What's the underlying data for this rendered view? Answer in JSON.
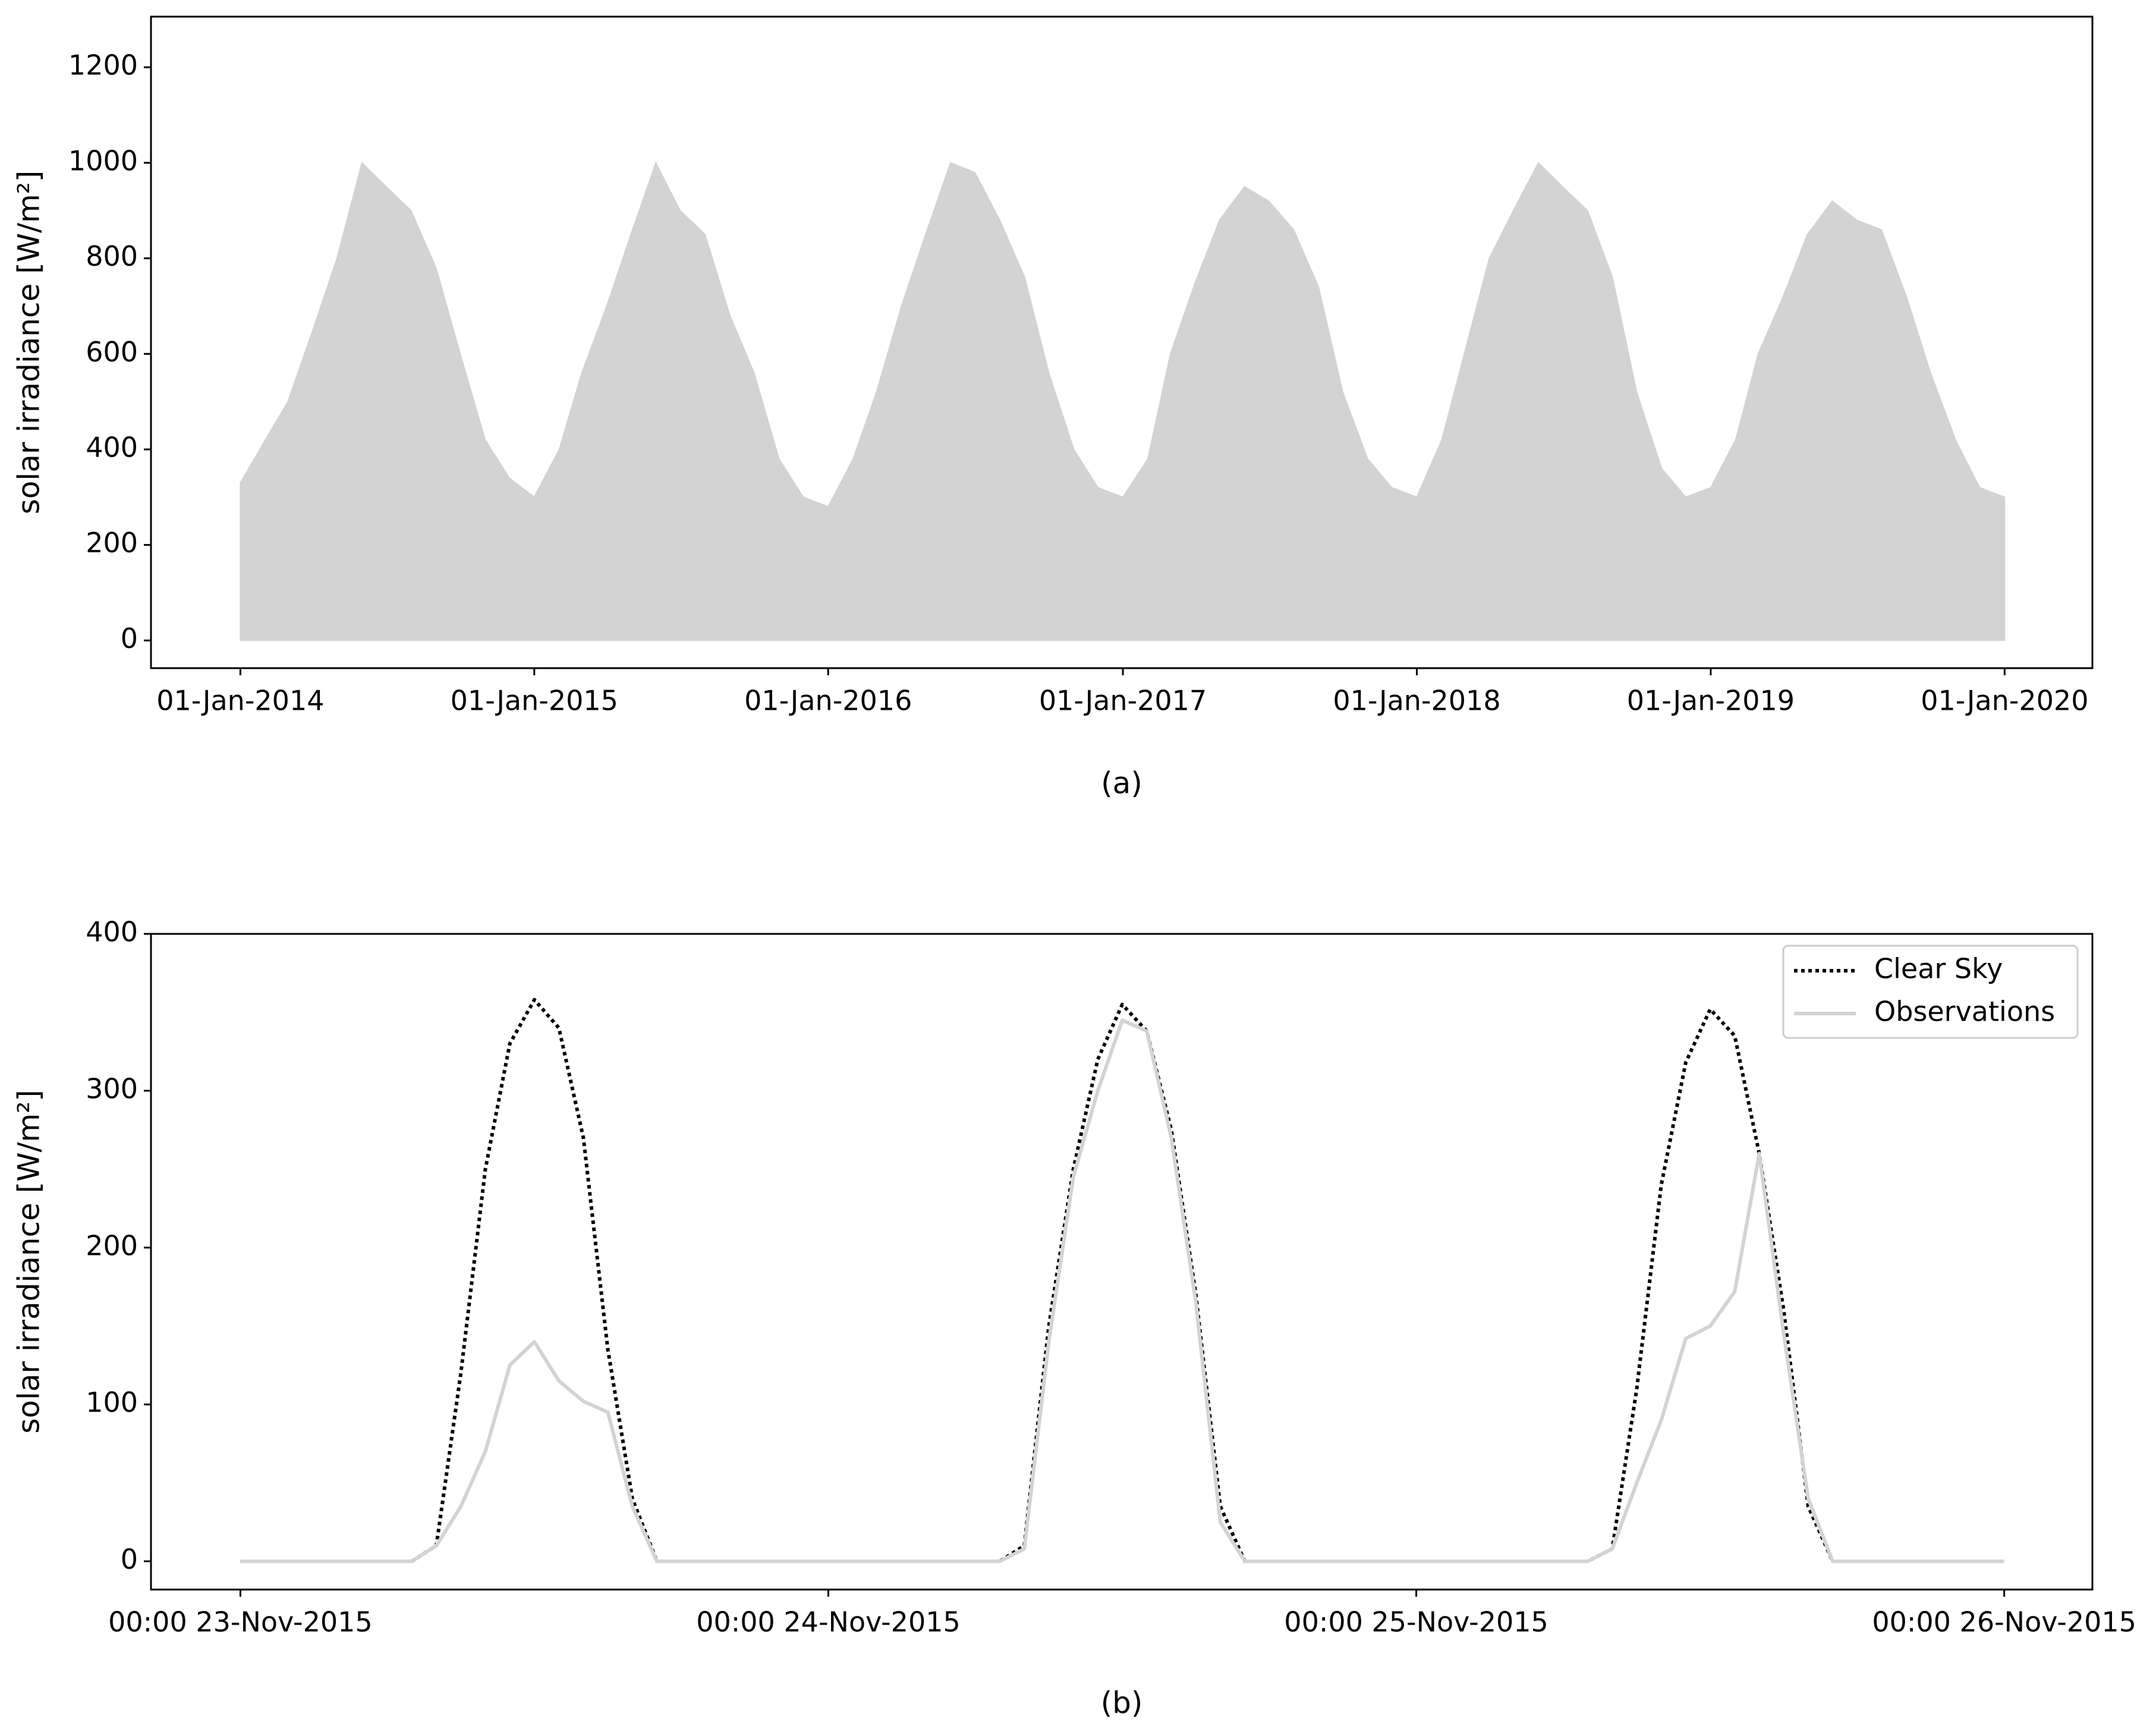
{
  "chart_data": [
    {
      "type": "area",
      "caption": "(a)",
      "ylabel": "solar irradiance [W/m²]",
      "x": [
        "2014-01-01",
        "2014-02-01",
        "2014-03-01",
        "2014-04-01",
        "2014-05-01",
        "2014-06-01",
        "2014-07-01",
        "2014-08-01",
        "2014-09-01",
        "2014-10-01",
        "2014-11-01",
        "2014-12-01",
        "2015-01-01",
        "2015-02-01",
        "2015-03-01",
        "2015-04-01",
        "2015-05-01",
        "2015-06-01",
        "2015-07-01",
        "2015-08-01",
        "2015-09-01",
        "2015-10-01",
        "2015-11-01",
        "2015-12-01",
        "2016-01-01",
        "2016-02-01",
        "2016-03-01",
        "2016-04-01",
        "2016-05-01",
        "2016-06-01",
        "2016-07-01",
        "2016-08-01",
        "2016-09-01",
        "2016-10-01",
        "2016-11-01",
        "2016-12-01",
        "2017-01-01",
        "2017-02-01",
        "2017-03-01",
        "2017-04-01",
        "2017-05-01",
        "2017-06-01",
        "2017-07-01",
        "2017-08-01",
        "2017-09-01",
        "2017-10-01",
        "2017-11-01",
        "2017-12-01",
        "2018-01-01",
        "2018-02-01",
        "2018-03-01",
        "2018-04-01",
        "2018-05-01",
        "2018-06-01",
        "2018-07-01",
        "2018-08-01",
        "2018-09-01",
        "2018-10-01",
        "2018-11-01",
        "2018-12-01",
        "2019-01-01",
        "2019-02-01",
        "2019-03-01",
        "2019-04-01",
        "2019-05-01",
        "2019-06-01",
        "2019-07-01",
        "2019-08-01",
        "2019-09-01",
        "2019-10-01",
        "2019-11-01",
        "2019-12-01",
        "2020-01-01"
      ],
      "series": [
        {
          "color": "#d3d3d3",
          "values": [
            330,
            420,
            500,
            650,
            800,
            1000,
            950,
            900,
            780,
            600,
            420,
            340,
            300,
            400,
            560,
            700,
            850,
            1000,
            900,
            850,
            680,
            560,
            380,
            300,
            280,
            380,
            520,
            700,
            850,
            1000,
            980,
            880,
            760,
            560,
            400,
            320,
            300,
            380,
            600,
            750,
            880,
            950,
            920,
            860,
            740,
            520,
            380,
            320,
            300,
            420,
            600,
            800,
            900,
            1000,
            950,
            900,
            760,
            520,
            360,
            300,
            320,
            420,
            600,
            720,
            850,
            920,
            880,
            860,
            720,
            560,
            420,
            320,
            300
          ]
        }
      ],
      "xlim": [
        "2013-09-12",
        "2020-04-19"
      ],
      "xticks": [
        {
          "value": "2014-01-01",
          "label": "01-Jan-2014"
        },
        {
          "value": "2015-01-01",
          "label": "01-Jan-2015"
        },
        {
          "value": "2016-01-01",
          "label": "01-Jan-2016"
        },
        {
          "value": "2017-01-01",
          "label": "01-Jan-2017"
        },
        {
          "value": "2018-01-01",
          "label": "01-Jan-2018"
        },
        {
          "value": "2019-01-01",
          "label": "01-Jan-2019"
        },
        {
          "value": "2020-01-01",
          "label": "01-Jan-2020"
        }
      ],
      "ylim": [
        -58,
        1306
      ],
      "yticks": [
        0,
        200,
        400,
        600,
        800,
        1000,
        1200
      ]
    },
    {
      "type": "line",
      "caption": "(b)",
      "ylabel": "solar irradiance [W/m²]",
      "legend": "upper right",
      "x": [
        "2015-11-23 00:00",
        "2015-11-23 01:00",
        "2015-11-23 02:00",
        "2015-11-23 03:00",
        "2015-11-23 04:00",
        "2015-11-23 05:00",
        "2015-11-23 06:00",
        "2015-11-23 07:00",
        "2015-11-23 08:00",
        "2015-11-23 09:00",
        "2015-11-23 10:00",
        "2015-11-23 11:00",
        "2015-11-23 12:00",
        "2015-11-23 13:00",
        "2015-11-23 14:00",
        "2015-11-23 15:00",
        "2015-11-23 16:00",
        "2015-11-23 17:00",
        "2015-11-23 18:00",
        "2015-11-23 19:00",
        "2015-11-23 20:00",
        "2015-11-23 21:00",
        "2015-11-23 22:00",
        "2015-11-23 23:00",
        "2015-11-24 00:00",
        "2015-11-24 01:00",
        "2015-11-24 02:00",
        "2015-11-24 03:00",
        "2015-11-24 04:00",
        "2015-11-24 05:00",
        "2015-11-24 06:00",
        "2015-11-24 07:00",
        "2015-11-24 08:00",
        "2015-11-24 09:00",
        "2015-11-24 10:00",
        "2015-11-24 11:00",
        "2015-11-24 12:00",
        "2015-11-24 13:00",
        "2015-11-24 14:00",
        "2015-11-24 15:00",
        "2015-11-24 16:00",
        "2015-11-24 17:00",
        "2015-11-24 18:00",
        "2015-11-24 19:00",
        "2015-11-24 20:00",
        "2015-11-24 21:00",
        "2015-11-24 22:00",
        "2015-11-24 23:00",
        "2015-11-25 00:00",
        "2015-11-25 01:00",
        "2015-11-25 02:00",
        "2015-11-25 03:00",
        "2015-11-25 04:00",
        "2015-11-25 05:00",
        "2015-11-25 06:00",
        "2015-11-25 07:00",
        "2015-11-25 08:00",
        "2015-11-25 09:00",
        "2015-11-25 10:00",
        "2015-11-25 11:00",
        "2015-11-25 12:00",
        "2015-11-25 13:00",
        "2015-11-25 14:00",
        "2015-11-25 15:00",
        "2015-11-25 16:00",
        "2015-11-25 17:00",
        "2015-11-25 18:00",
        "2015-11-25 19:00",
        "2015-11-25 20:00",
        "2015-11-25 21:00",
        "2015-11-25 22:00",
        "2015-11-25 23:00",
        "2015-11-26 00:00"
      ],
      "series": [
        {
          "name": "Clear Sky",
          "color": "#000000",
          "linestyle": "dotted",
          "values": [
            0,
            0,
            0,
            0,
            0,
            0,
            0,
            0,
            10,
            120,
            250,
            330,
            358,
            340,
            270,
            135,
            40,
            0,
            0,
            0,
            0,
            0,
            0,
            0,
            0,
            0,
            0,
            0,
            0,
            0,
            0,
            0,
            10,
            150,
            250,
            320,
            355,
            338,
            275,
            170,
            35,
            0,
            0,
            0,
            0,
            0,
            0,
            0,
            0,
            0,
            0,
            0,
            0,
            0,
            0,
            0,
            8,
            110,
            240,
            318,
            352,
            335,
            260,
            160,
            35,
            0,
            0,
            0,
            0,
            0,
            0,
            0,
            0
          ]
        },
        {
          "name": "Observations",
          "color": "#d3d3d3",
          "linestyle": "solid",
          "values": [
            0,
            0,
            0,
            0,
            0,
            0,
            0,
            0,
            10,
            35,
            70,
            125,
            140,
            115,
            102,
            95,
            35,
            0,
            0,
            0,
            0,
            0,
            0,
            0,
            0,
            0,
            0,
            0,
            0,
            0,
            0,
            0,
            8,
            140,
            245,
            300,
            345,
            338,
            270,
            165,
            25,
            0,
            0,
            0,
            0,
            0,
            0,
            0,
            0,
            0,
            0,
            0,
            0,
            0,
            0,
            0,
            8,
            50,
            90,
            142,
            150,
            172,
            260,
            145,
            40,
            0,
            0,
            0,
            0,
            0,
            0,
            0,
            0
          ]
        }
      ],
      "xlim": [
        "2015-11-22 20:21",
        "2015-11-26 03:36"
      ],
      "xticks": [
        {
          "value": "2015-11-23 00:00",
          "label": "00:00 23-Nov-2015"
        },
        {
          "value": "2015-11-24 00:00",
          "label": "00:00 24-Nov-2015"
        },
        {
          "value": "2015-11-25 00:00",
          "label": "00:00 25-Nov-2015"
        },
        {
          "value": "2015-11-26 00:00",
          "label": "00:00 26-Nov-2015"
        }
      ],
      "ylim": [
        -18,
        400
      ],
      "yticks": [
        0,
        100,
        200,
        300,
        400
      ]
    }
  ]
}
